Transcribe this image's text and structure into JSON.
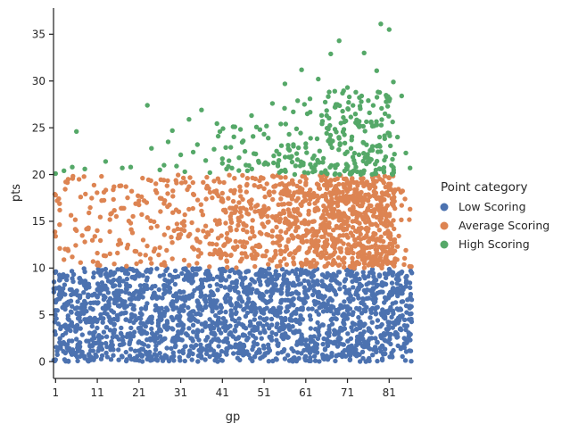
{
  "chart_data": {
    "type": "scatter",
    "title": "",
    "xlabel": "gp",
    "ylabel": "pts",
    "xlim": [
      0.5,
      86.5
    ],
    "ylim": [
      -1.8,
      37.8
    ],
    "x_ticks": [
      1,
      11,
      21,
      31,
      41,
      51,
      61,
      71,
      81
    ],
    "y_ticks": [
      0,
      5,
      10,
      15,
      20,
      25,
      30,
      35
    ],
    "grid": false,
    "legend_title": "Point category",
    "legend_position": "right",
    "series": [
      {
        "name": "Low Scoring",
        "color": "#4c72b0",
        "range": [
          0,
          10
        ],
        "density_note": "dense band across all gp values",
        "points": [
          [
            1,
            0.2
          ],
          [
            2,
            1.5
          ],
          [
            3,
            3.8
          ],
          [
            4,
            6.2
          ],
          [
            5,
            8.9
          ],
          [
            6,
            2.4
          ],
          [
            7,
            5.1
          ],
          [
            8,
            9.6
          ],
          [
            9,
            0.8
          ],
          [
            10,
            4.3
          ],
          [
            11,
            7.7
          ],
          [
            12,
            1.9
          ],
          [
            13,
            5.6
          ],
          [
            14,
            9.2
          ],
          [
            15,
            3.1
          ],
          [
            16,
            6.8
          ],
          [
            17,
            0.5
          ],
          [
            18,
            8.3
          ],
          [
            19,
            2.7
          ],
          [
            20,
            4.9
          ],
          [
            21,
            7.1
          ],
          [
            22,
            1.3
          ],
          [
            23,
            9.8
          ],
          [
            24,
            3.5
          ],
          [
            25,
            6.0
          ],
          [
            26,
            0.9
          ],
          [
            27,
            5.3
          ],
          [
            28,
            8.6
          ],
          [
            29,
            2.2
          ],
          [
            30,
            4.7
          ],
          [
            31,
            7.4
          ],
          [
            32,
            1.6
          ],
          [
            33,
            9.4
          ],
          [
            34,
            3.9
          ],
          [
            35,
            6.5
          ],
          [
            36,
            0.4
          ],
          [
            37,
            5.8
          ],
          [
            38,
            8.1
          ],
          [
            39,
            2.9
          ],
          [
            40,
            4.4
          ],
          [
            41,
            9.9
          ],
          [
            42,
            1.1
          ],
          [
            43,
            7.9
          ],
          [
            44,
            3.3
          ],
          [
            45,
            6.7
          ],
          [
            46,
            0.7
          ],
          [
            47,
            5.2
          ],
          [
            48,
            8.8
          ],
          [
            49,
            2.5
          ],
          [
            50,
            4.1
          ],
          [
            51,
            9.1
          ],
          [
            52,
            1.8
          ],
          [
            53,
            7.3
          ],
          [
            54,
            3.7
          ],
          [
            55,
            6.3
          ],
          [
            56,
            0.3
          ],
          [
            57,
            5.9
          ],
          [
            58,
            8.4
          ],
          [
            59,
            2.1
          ],
          [
            60,
            4.6
          ],
          [
            61,
            9.7
          ],
          [
            62,
            1.4
          ],
          [
            63,
            7.6
          ],
          [
            64,
            3.2
          ],
          [
            65,
            6.9
          ],
          [
            66,
            0.6
          ],
          [
            67,
            5.4
          ],
          [
            68,
            8.7
          ],
          [
            69,
            2.6
          ],
          [
            70,
            4.2
          ],
          [
            71,
            9.3
          ],
          [
            72,
            1.7
          ],
          [
            73,
            7.2
          ],
          [
            74,
            3.6
          ],
          [
            75,
            6.1
          ],
          [
            76,
            0.2
          ],
          [
            77,
            5.7
          ],
          [
            78,
            8.2
          ],
          [
            79,
            2.8
          ],
          [
            80,
            4.8
          ],
          [
            81,
            9.5
          ],
          [
            82,
            1.2
          ],
          [
            83,
            7.8
          ],
          [
            84,
            6.4
          ],
          [
            85,
            3.4
          ],
          [
            86,
            7.9
          ]
        ]
      },
      {
        "name": "Average Scoring",
        "color": "#dd8452",
        "range": [
          10,
          20
        ],
        "density_note": "sparse at low gp, dense from gp 40 onward",
        "points": [
          [
            1,
            17.8
          ],
          [
            1,
            13.4
          ],
          [
            2,
            12.1
          ],
          [
            2,
            16.2
          ],
          [
            3,
            10.9
          ],
          [
            4,
            19.5
          ],
          [
            5,
            11.2
          ],
          [
            6,
            14.0
          ],
          [
            7,
            17.6
          ],
          [
            8,
            12.8
          ],
          [
            9,
            15.9
          ],
          [
            10,
            10.7
          ],
          [
            11,
            11.6
          ],
          [
            12,
            19.8
          ],
          [
            13,
            11.3
          ],
          [
            14,
            13.9
          ],
          [
            15,
            18.7
          ],
          [
            16,
            12.5
          ],
          [
            17,
            16.4
          ],
          [
            18,
            10.2
          ],
          [
            19,
            14.8
          ],
          [
            20,
            11.8
          ],
          [
            21,
            17.2
          ],
          [
            22,
            13.0
          ],
          [
            23,
            15.4
          ],
          [
            24,
            10.5
          ],
          [
            25,
            18.3
          ],
          [
            26,
            12.2
          ],
          [
            27,
            16.9
          ],
          [
            28,
            14.3
          ],
          [
            29,
            11.0
          ],
          [
            30,
            19.1
          ],
          [
            31,
            13.6
          ],
          [
            32,
            15.7
          ],
          [
            33,
            10.3
          ],
          [
            34,
            17.9
          ],
          [
            35,
            12.9
          ],
          [
            36,
            16.1
          ],
          [
            37,
            14.5
          ],
          [
            38,
            11.5
          ],
          [
            39,
            19.3
          ],
          [
            40,
            13.2
          ],
          [
            41,
            18.0
          ],
          [
            42,
            10.8
          ],
          [
            43,
            15.2
          ],
          [
            44,
            12.0
          ],
          [
            45,
            17.0
          ],
          [
            46,
            14.1
          ],
          [
            47,
            19.6
          ],
          [
            48,
            11.4
          ],
          [
            49,
            16.6
          ],
          [
            50,
            13.8
          ],
          [
            51,
            18.5
          ],
          [
            52,
            10.4
          ],
          [
            53,
            15.5
          ],
          [
            54,
            12.7
          ],
          [
            55,
            17.4
          ],
          [
            56,
            14.9
          ],
          [
            57,
            19.0
          ],
          [
            58,
            11.1
          ],
          [
            59,
            16.3
          ],
          [
            60,
            13.3
          ],
          [
            61,
            18.9
          ],
          [
            62,
            10.6
          ],
          [
            63,
            15.0
          ],
          [
            64,
            12.4
          ],
          [
            65,
            17.7
          ],
          [
            66,
            14.6
          ],
          [
            67,
            19.4
          ],
          [
            68,
            11.7
          ],
          [
            69,
            16.0
          ],
          [
            70,
            13.5
          ],
          [
            71,
            18.2
          ],
          [
            72,
            10.1
          ],
          [
            73,
            15.8
          ],
          [
            74,
            12.6
          ],
          [
            75,
            17.3
          ],
          [
            76,
            14.2
          ],
          [
            77,
            19.7
          ],
          [
            78,
            11.9
          ],
          [
            79,
            16.8
          ],
          [
            80,
            13.7
          ],
          [
            81,
            18.4
          ],
          [
            82,
            15.1
          ],
          [
            83,
            12.3
          ],
          [
            84,
            16.7
          ],
          [
            85,
            11.9
          ],
          [
            86,
            16.3
          ]
        ]
      },
      {
        "name": "High Scoring",
        "color": "#55a868",
        "range": [
          20,
          36.1
        ],
        "density_note": "very sparse at low gp, clustered 20-30 at high gp",
        "points": [
          [
            1,
            20.1
          ],
          [
            3,
            20.4
          ],
          [
            5,
            20.8
          ],
          [
            6,
            24.6
          ],
          [
            8,
            20.6
          ],
          [
            13,
            21.4
          ],
          [
            17,
            20.7
          ],
          [
            19,
            20.8
          ],
          [
            23,
            27.4
          ],
          [
            24,
            22.8
          ],
          [
            26,
            20.5
          ],
          [
            27,
            21.0
          ],
          [
            28,
            23.5
          ],
          [
            29,
            24.7
          ],
          [
            30,
            20.9
          ],
          [
            31,
            22.1
          ],
          [
            32,
            20.3
          ],
          [
            33,
            25.9
          ],
          [
            34,
            22.4
          ],
          [
            35,
            23.2
          ],
          [
            36,
            26.9
          ],
          [
            37,
            21.5
          ],
          [
            38,
            20.2
          ],
          [
            39,
            22.7
          ],
          [
            40,
            24.1
          ],
          [
            41,
            21.2
          ],
          [
            42,
            20.6
          ],
          [
            43,
            22.9
          ],
          [
            44,
            25.1
          ],
          [
            45,
            21.8
          ],
          [
            46,
            23.6
          ],
          [
            47,
            20.4
          ],
          [
            48,
            26.3
          ],
          [
            49,
            22.2
          ],
          [
            50,
            24.8
          ],
          [
            51,
            21.1
          ],
          [
            52,
            23.9
          ],
          [
            53,
            27.6
          ],
          [
            54,
            22.5
          ],
          [
            55,
            25.4
          ],
          [
            56,
            29.7
          ],
          [
            57,
            24.3
          ],
          [
            58,
            26.7
          ],
          [
            59,
            21.6
          ],
          [
            60,
            31.2
          ],
          [
            61,
            23.3
          ],
          [
            62,
            28.1
          ],
          [
            63,
            22.0
          ],
          [
            64,
            30.2
          ],
          [
            65,
            25.7
          ],
          [
            66,
            24.4
          ],
          [
            67,
            32.9
          ],
          [
            68,
            27.2
          ],
          [
            69,
            34.3
          ],
          [
            70,
            26.1
          ],
          [
            71,
            29.3
          ],
          [
            72,
            23.7
          ],
          [
            73,
            28.8
          ],
          [
            74,
            25.2
          ],
          [
            75,
            33.0
          ],
          [
            76,
            27.9
          ],
          [
            77,
            22.6
          ],
          [
            78,
            31.1
          ],
          [
            79,
            36.1
          ],
          [
            80,
            26.5
          ],
          [
            81,
            35.5
          ],
          [
            82,
            29.9
          ],
          [
            83,
            24.0
          ],
          [
            84,
            28.4
          ],
          [
            85,
            22.3
          ],
          [
            86,
            20.7
          ]
        ]
      }
    ]
  }
}
